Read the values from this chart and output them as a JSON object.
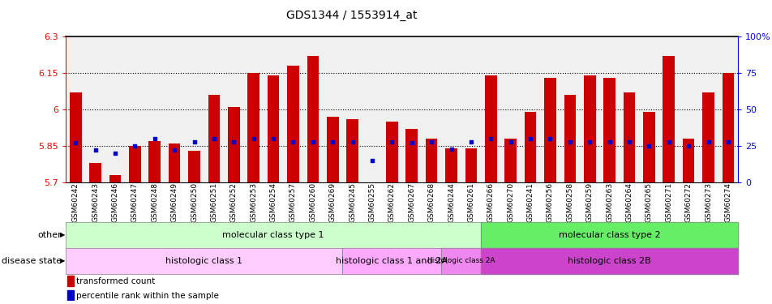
{
  "title": "GDS1344 / 1553914_at",
  "samples": [
    "GSM60242",
    "GSM60243",
    "GSM60246",
    "GSM60247",
    "GSM60248",
    "GSM60249",
    "GSM60250",
    "GSM60251",
    "GSM60252",
    "GSM60253",
    "GSM60254",
    "GSM60257",
    "GSM60260",
    "GSM60269",
    "GSM60245",
    "GSM60255",
    "GSM60262",
    "GSM60267",
    "GSM60268",
    "GSM60244",
    "GSM60261",
    "GSM60266",
    "GSM60270",
    "GSM60241",
    "GSM60256",
    "GSM60258",
    "GSM60259",
    "GSM60263",
    "GSM60264",
    "GSM60265",
    "GSM60271",
    "GSM60272",
    "GSM60273",
    "GSM60274"
  ],
  "bar_heights": [
    6.07,
    5.78,
    5.73,
    5.85,
    5.87,
    5.86,
    5.83,
    6.06,
    6.01,
    6.15,
    6.14,
    6.18,
    6.22,
    5.97,
    5.96,
    5.7,
    5.95,
    5.92,
    5.88,
    5.84,
    5.84,
    6.14,
    5.88,
    5.99,
    6.13,
    6.06,
    6.14,
    6.13,
    6.07,
    5.99,
    6.22,
    5.88,
    6.07,
    6.15
  ],
  "percentile_ranks": [
    27,
    22,
    20,
    25,
    30,
    22,
    28,
    30,
    28,
    30,
    30,
    28,
    28,
    28,
    28,
    15,
    28,
    27,
    28,
    23,
    28,
    30,
    28,
    30,
    30,
    28,
    28,
    28,
    28,
    25,
    28,
    25,
    28,
    28
  ],
  "bar_color": "#cc0000",
  "dot_color": "#0000cc",
  "ymin": 5.7,
  "ymax": 6.3,
  "yticks": [
    5.7,
    5.85,
    6.0,
    6.15,
    6.3
  ],
  "ytick_labels": [
    "5.7",
    "5.85",
    "6",
    "6.15",
    "6.3"
  ],
  "right_yticks": [
    0,
    25,
    50,
    75,
    100
  ],
  "right_ytick_labels": [
    "0",
    "25",
    "50",
    "75",
    "100%"
  ],
  "hlines": [
    5.85,
    6.0,
    6.15
  ],
  "group_row1": [
    {
      "label": "molecular class type 1",
      "start": 0,
      "end": 21,
      "color": "#ccffcc"
    },
    {
      "label": "molecular class type 2",
      "start": 21,
      "end": 34,
      "color": "#66ee66"
    }
  ],
  "group_row2": [
    {
      "label": "histologic class 1",
      "start": 0,
      "end": 14,
      "color": "#ffccff"
    },
    {
      "label": "histologic class 1 and 2A",
      "start": 14,
      "end": 19,
      "color": "#ffaaff"
    },
    {
      "label": "histologic class 2A",
      "start": 19,
      "end": 21,
      "color": "#ee88ee"
    },
    {
      "label": "histologic class 2B",
      "start": 21,
      "end": 34,
      "color": "#cc44cc"
    }
  ],
  "row1_label": "other",
  "row2_label": "disease state",
  "legend_items": [
    {
      "label": "transformed count",
      "color": "#cc0000"
    },
    {
      "label": "percentile rank within the sample",
      "color": "#0000cc"
    }
  ],
  "background_color": "#f0f0f0"
}
